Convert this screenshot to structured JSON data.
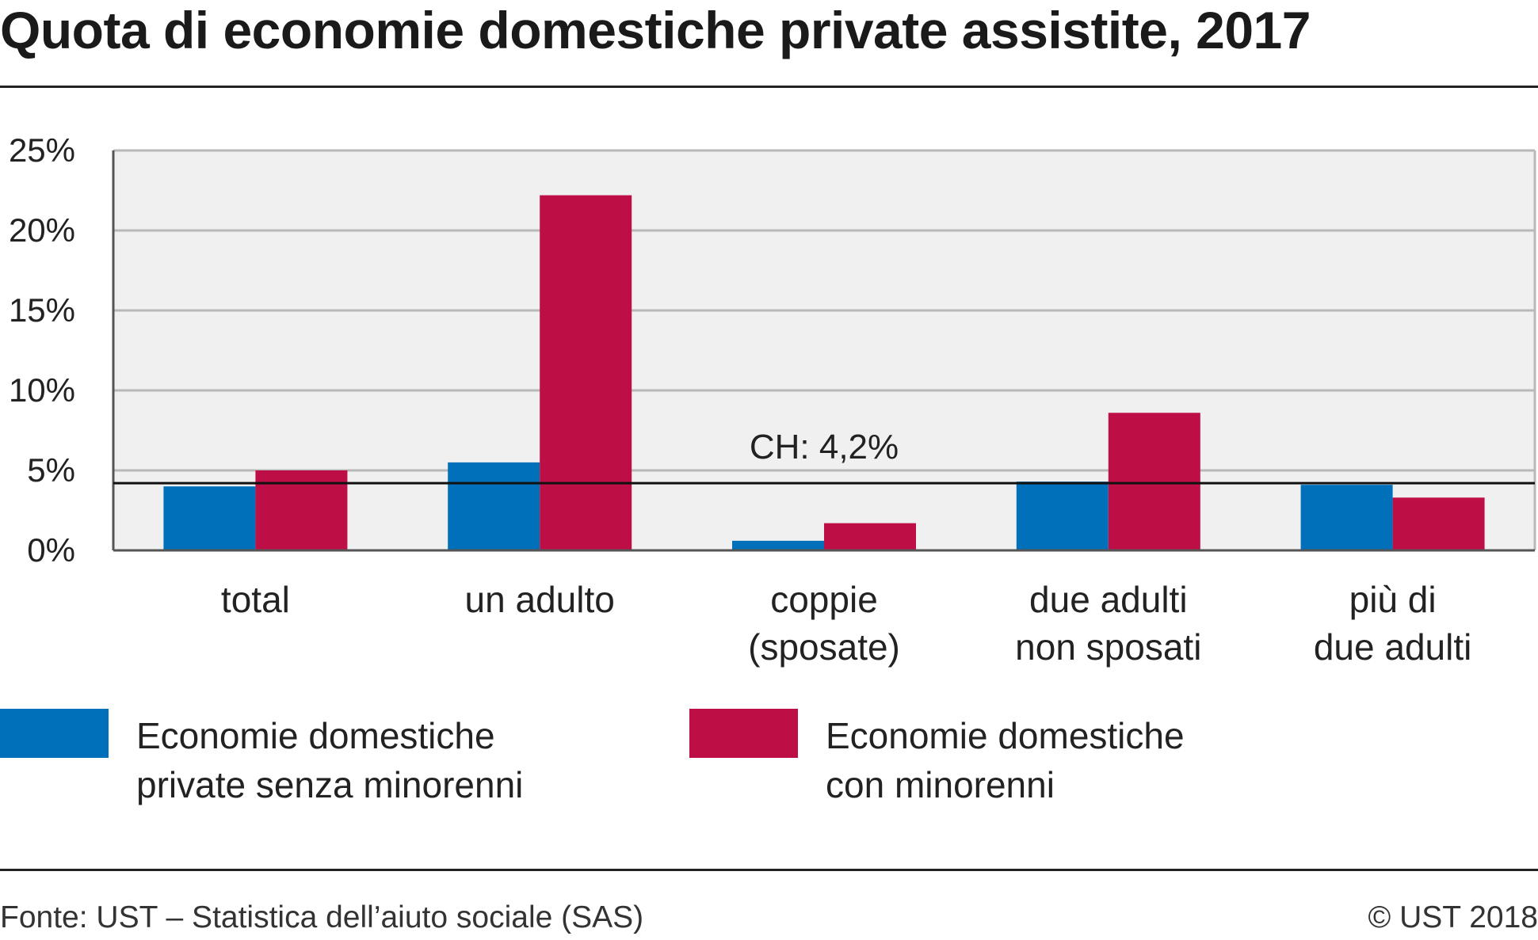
{
  "page": {
    "title": "Quota di economie domestiche private assistite, 2017",
    "source": "Fonte: UST – Statistica dell’aiuto sociale (SAS)",
    "copyright": "© UST 2018"
  },
  "chart_data": {
    "type": "bar",
    "title": "Quota di economie domestiche private assistite, 2017",
    "xlabel": "",
    "ylabel": "",
    "ylim": [
      0,
      25
    ],
    "yticks": [
      0,
      5,
      10,
      15,
      20,
      25
    ],
    "ytick_suffix": "%",
    "grid": true,
    "legend_position": "bottom",
    "categories": [
      [
        "total"
      ],
      [
        "un adulto"
      ],
      [
        "coppie",
        "(sposate)"
      ],
      [
        "due adulti",
        "non sposati"
      ],
      [
        "più di",
        "due adulti"
      ]
    ],
    "series": [
      {
        "name": "Economie domestiche private senza minorenni",
        "legend_lines": [
          "Economie domestiche",
          "private senza minorenni"
        ],
        "color": "#0070ba",
        "values": [
          4.0,
          5.5,
          0.6,
          4.3,
          4.1
        ]
      },
      {
        "name": "Economie domestiche con minorenni",
        "legend_lines": [
          "Economie domestiche",
          "con minorenni"
        ],
        "color": "#bd0e46",
        "values": [
          5.0,
          22.2,
          1.7,
          8.6,
          3.3
        ]
      }
    ],
    "reference_line": {
      "value": 4.2,
      "label": "CH: 4,2%"
    },
    "colors": {
      "plot_bg": "#f0f0f0",
      "grid": "#b8b8b8",
      "axis": "#555555",
      "reference": "#111111"
    }
  }
}
